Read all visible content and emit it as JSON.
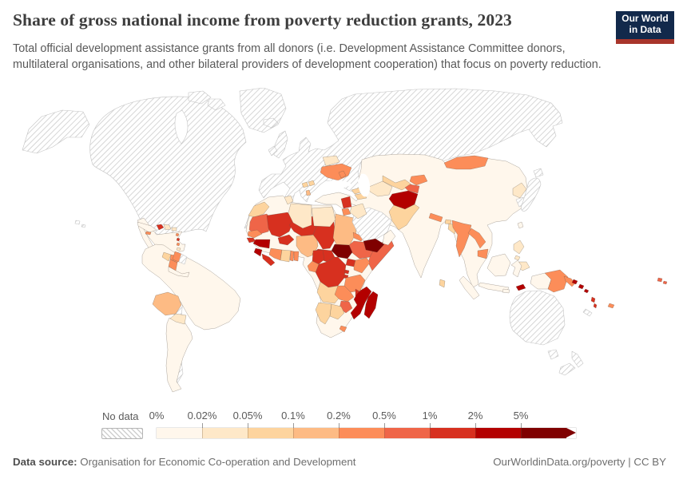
{
  "header": {
    "title": "Share of gross national income from poverty reduction grants, 2023",
    "subtitle": "Total official development assistance grants from all donors (i.e. Development Assistance Committee donors, multilateral organisations, and other bilateral providers of development cooperation) that focus on poverty reduction.",
    "logo": {
      "line1": "Our World",
      "line2": "in Data",
      "bg_color": "#12294b",
      "accent_color": "#a8352b"
    }
  },
  "legend": {
    "no_data_label": "No data",
    "tick_labels": [
      "0%",
      "0.02%",
      "0.05%",
      "0.1%",
      "0.2%",
      "0.5%",
      "1%",
      "2%",
      "5%"
    ],
    "colors": [
      "#fff7ec",
      "#fee8c8",
      "#fdd49e",
      "#fdbb84",
      "#fc8d59",
      "#ef6548",
      "#d7301f",
      "#b30000",
      "#7f0000"
    ]
  },
  "footer": {
    "source_label": "Data source:",
    "source_value": "Organisation for Economic Co-operation and Development",
    "link": "OurWorldinData.org/poverty",
    "divider": " | ",
    "license": "CC BY"
  },
  "chart_data": {
    "type": "choropleth",
    "title": "Share of gross national income from poverty reduction grants",
    "year": 2023,
    "unit": "share of gross national income (%)",
    "legend_position": "bottom",
    "no_data_style": "diagonal grey hatching",
    "legend_bins": [
      {
        "range": "0–0.02%",
        "color": "#fff7ec",
        "countries": [
          "Mexico",
          "Cuba",
          "Venezuela",
          "Colombia",
          "Ecuador",
          "Peru",
          "Brazil",
          "Argentina",
          "Uruguay",
          "Algeria",
          "South Africa",
          "Gabon",
          "Turkey",
          "Iran",
          "Oman",
          "Kazakhstan",
          "China",
          "India",
          "Thailand",
          "Vietnam",
          "Malaysia",
          "Indonesia",
          "Taiwan"
        ]
      },
      {
        "range": "0.02–0.05%",
        "color": "#fee8c8",
        "countries": [
          "Dominican Republic",
          "Paraguay",
          "Tunisia",
          "Libya",
          "Egypt",
          "Iraq",
          "Belarus",
          "Turkmenistan",
          "Azerbaijan",
          "North Korea",
          "Philippines",
          "Trinidad and Tobago"
        ]
      },
      {
        "range": "0.05–0.1%",
        "color": "#fdd49e",
        "countries": [
          "Guatemala",
          "Morocco",
          "Ghana",
          "Angola",
          "Namibia",
          "Botswana",
          "Georgia",
          "Armenia",
          "Uzbekistan",
          "Pakistan",
          "Bhutan",
          "Bangladesh",
          "Sri Lanka",
          "Bosnia and Herzegovina",
          "Serbia"
        ]
      },
      {
        "range": "0.1–0.2%",
        "color": "#fdbb84",
        "countries": [
          "Bolivia",
          "Nigeria",
          "Sudan",
          "Albania",
          "Eswatini"
        ]
      },
      {
        "range": "0.2–0.5%",
        "color": "#fc8d59",
        "countries": [
          "Honduras",
          "Nicaragua",
          "Jamaica",
          "Suriname",
          "Senegal",
          "Côte d'Ivoire",
          "Togo",
          "Benin",
          "Eritrea",
          "Djibouti",
          "Kenya",
          "Congo",
          "Tanzania",
          "Zambia",
          "Lesotho",
          "Ukraine",
          "Moldova",
          "Jordan",
          "Kyrgyzstan",
          "Mongolia",
          "Nepal",
          "Myanmar",
          "Laos",
          "Cambodia",
          "Papua New Guinea",
          "Fiji"
        ]
      },
      {
        "range": "0.5–1%",
        "color": "#ef6548",
        "countries": [
          "Mauritania",
          "Ethiopia",
          "Somalia",
          "Zimbabwe",
          "Tajikistan",
          "Samoa"
        ]
      },
      {
        "range": "1–2%",
        "color": "#d7301f",
        "countries": [
          "Haiti",
          "Mali",
          "Burkina Faso",
          "Niger",
          "Chad",
          "Guinea-Bissau",
          "Liberia",
          "Central African Republic",
          "Cameroon",
          "Democratic Republic of Congo",
          "Uganda",
          "Rwanda",
          "Burundi",
          "Malawi",
          "Syria",
          "Vanuatu",
          "Dominica"
        ]
      },
      {
        "range": "2–5%",
        "color": "#b30000",
        "countries": [
          "Guinea",
          "Sierra Leone",
          "Mozambique",
          "Madagascar",
          "Afghanistan",
          "Solomon Islands",
          "Timor-Leste"
        ]
      },
      {
        "range": ">5%",
        "color": "#7f0000",
        "countries": [
          "South Sudan",
          "Yemen"
        ]
      }
    ],
    "no_data_countries": [
      "Canada",
      "United States",
      "Greenland",
      "Iceland",
      "United Kingdom",
      "Ireland",
      "European Union countries",
      "Norway",
      "Sweden",
      "Finland",
      "Russia",
      "Japan",
      "South Korea",
      "Saudi Arabia",
      "Australia",
      "New Zealand",
      "Chile",
      "French Guiana",
      "Western Sahara",
      "New Caledonia"
    ]
  }
}
